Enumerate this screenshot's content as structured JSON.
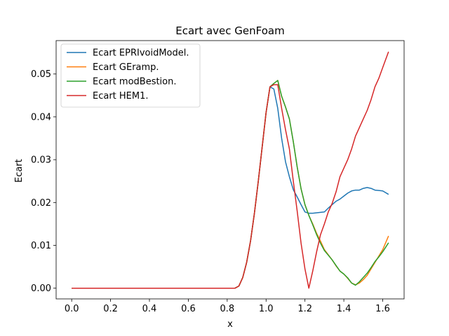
{
  "chart_data": {
    "type": "line",
    "title": "Ecart avec GenFoam",
    "xlabel": "x",
    "ylabel": "Ecart",
    "xlim": [
      -0.08,
      1.71
    ],
    "ylim": [
      -0.0025,
      0.0578
    ],
    "xticks": [
      0.0,
      0.2,
      0.4,
      0.6,
      0.8,
      1.0,
      1.2,
      1.4,
      1.6
    ],
    "xtick_labels": [
      "0.0",
      "0.2",
      "0.4",
      "0.6",
      "0.8",
      "1.0",
      "1.2",
      "1.4",
      "1.6"
    ],
    "yticks": [
      0.0,
      0.01,
      0.02,
      0.03,
      0.04,
      0.05
    ],
    "ytick_labels": [
      "0.00",
      "0.01",
      "0.02",
      "0.03",
      "0.04",
      "0.05"
    ],
    "grid": false,
    "legend_position": "top-left",
    "series": [
      {
        "name": "Ecart EPRIvoidModel.",
        "color": "#1f77b4",
        "x": [
          0.0,
          0.2,
          0.4,
          0.6,
          0.8,
          0.84,
          0.86,
          0.88,
          0.9,
          0.92,
          0.94,
          0.96,
          0.98,
          1.0,
          1.02,
          1.04,
          1.06,
          1.08,
          1.1,
          1.12,
          1.14,
          1.16,
          1.18,
          1.2,
          1.22,
          1.24,
          1.26,
          1.28,
          1.3,
          1.32,
          1.34,
          1.36,
          1.38,
          1.4,
          1.42,
          1.44,
          1.46,
          1.48,
          1.5,
          1.52,
          1.54,
          1.56,
          1.58,
          1.6,
          1.63
        ],
        "y": [
          0.0,
          0.0,
          0.0,
          0.0,
          0.0,
          0.0,
          0.0005,
          0.0025,
          0.006,
          0.011,
          0.0175,
          0.025,
          0.033,
          0.041,
          0.047,
          0.0465,
          0.042,
          0.035,
          0.0295,
          0.026,
          0.023,
          0.0213,
          0.0195,
          0.0178,
          0.0175,
          0.0175,
          0.0176,
          0.0177,
          0.0178,
          0.0187,
          0.0195,
          0.0203,
          0.0208,
          0.0215,
          0.0222,
          0.0227,
          0.0229,
          0.0229,
          0.0233,
          0.0235,
          0.0233,
          0.0229,
          0.0228,
          0.0227,
          0.0219
        ]
      },
      {
        "name": "Ecart GEramp.",
        "color": "#ff7f0e",
        "x": [
          0.0,
          0.2,
          0.4,
          0.6,
          0.8,
          0.84,
          0.86,
          0.88,
          0.9,
          0.92,
          0.94,
          0.96,
          0.98,
          1.0,
          1.02,
          1.04,
          1.06,
          1.08,
          1.1,
          1.12,
          1.14,
          1.16,
          1.18,
          1.2,
          1.22,
          1.24,
          1.26,
          1.28,
          1.3,
          1.32,
          1.34,
          1.36,
          1.38,
          1.4,
          1.42,
          1.44,
          1.46,
          1.48,
          1.5,
          1.52,
          1.54,
          1.56,
          1.58,
          1.6,
          1.63
        ],
        "y": [
          0.0,
          0.0,
          0.0,
          0.0,
          0.0,
          0.0,
          0.0005,
          0.0025,
          0.006,
          0.011,
          0.0175,
          0.025,
          0.033,
          0.041,
          0.047,
          0.0478,
          0.0485,
          0.0448,
          0.0423,
          0.0395,
          0.0342,
          0.0283,
          0.0232,
          0.0195,
          0.017,
          0.015,
          0.0128,
          0.011,
          0.009,
          0.0078,
          0.0066,
          0.0052,
          0.004,
          0.0033,
          0.0023,
          0.0012,
          0.0008,
          0.0012,
          0.002,
          0.003,
          0.0045,
          0.006,
          0.0075,
          0.009,
          0.0122
        ]
      },
      {
        "name": "Ecart modBestion.",
        "color": "#2ca02c",
        "x": [
          0.0,
          0.2,
          0.4,
          0.6,
          0.8,
          0.84,
          0.86,
          0.88,
          0.9,
          0.92,
          0.94,
          0.96,
          0.98,
          1.0,
          1.02,
          1.04,
          1.06,
          1.08,
          1.1,
          1.12,
          1.14,
          1.16,
          1.18,
          1.2,
          1.22,
          1.24,
          1.26,
          1.28,
          1.3,
          1.32,
          1.34,
          1.36,
          1.38,
          1.4,
          1.42,
          1.44,
          1.46,
          1.48,
          1.5,
          1.52,
          1.54,
          1.56,
          1.58,
          1.6,
          1.63
        ],
        "y": [
          0.0,
          0.0,
          0.0,
          0.0,
          0.0,
          0.0,
          0.0005,
          0.0025,
          0.006,
          0.011,
          0.0175,
          0.025,
          0.033,
          0.041,
          0.047,
          0.0478,
          0.0485,
          0.0448,
          0.0423,
          0.0395,
          0.0342,
          0.0283,
          0.0232,
          0.0195,
          0.017,
          0.0148,
          0.0125,
          0.0105,
          0.0088,
          0.0077,
          0.0066,
          0.0053,
          0.004,
          0.0033,
          0.0024,
          0.0012,
          0.0007,
          0.0015,
          0.0025,
          0.0035,
          0.0048,
          0.0062,
          0.0073,
          0.0085,
          0.0106
        ]
      },
      {
        "name": "Ecart HEM1.",
        "color": "#d62728",
        "x": [
          0.0,
          0.2,
          0.4,
          0.6,
          0.8,
          0.84,
          0.86,
          0.88,
          0.9,
          0.92,
          0.94,
          0.96,
          0.98,
          1.0,
          1.02,
          1.04,
          1.06,
          1.08,
          1.1,
          1.12,
          1.14,
          1.16,
          1.18,
          1.2,
          1.22,
          1.24,
          1.26,
          1.28,
          1.3,
          1.32,
          1.34,
          1.36,
          1.38,
          1.4,
          1.42,
          1.44,
          1.46,
          1.48,
          1.5,
          1.52,
          1.54,
          1.56,
          1.58,
          1.6,
          1.63
        ],
        "y": [
          0.0,
          0.0,
          0.0,
          0.0,
          0.0,
          0.0,
          0.0005,
          0.0025,
          0.006,
          0.011,
          0.0175,
          0.025,
          0.033,
          0.041,
          0.047,
          0.0475,
          0.0475,
          0.042,
          0.037,
          0.0325,
          0.025,
          0.018,
          0.0105,
          0.0045,
          0.0,
          0.004,
          0.0085,
          0.0125,
          0.015,
          0.0178,
          0.0198,
          0.0225,
          0.026,
          0.028,
          0.03,
          0.0325,
          0.0355,
          0.0375,
          0.0395,
          0.0415,
          0.044,
          0.047,
          0.049,
          0.0515,
          0.0552
        ]
      }
    ]
  }
}
